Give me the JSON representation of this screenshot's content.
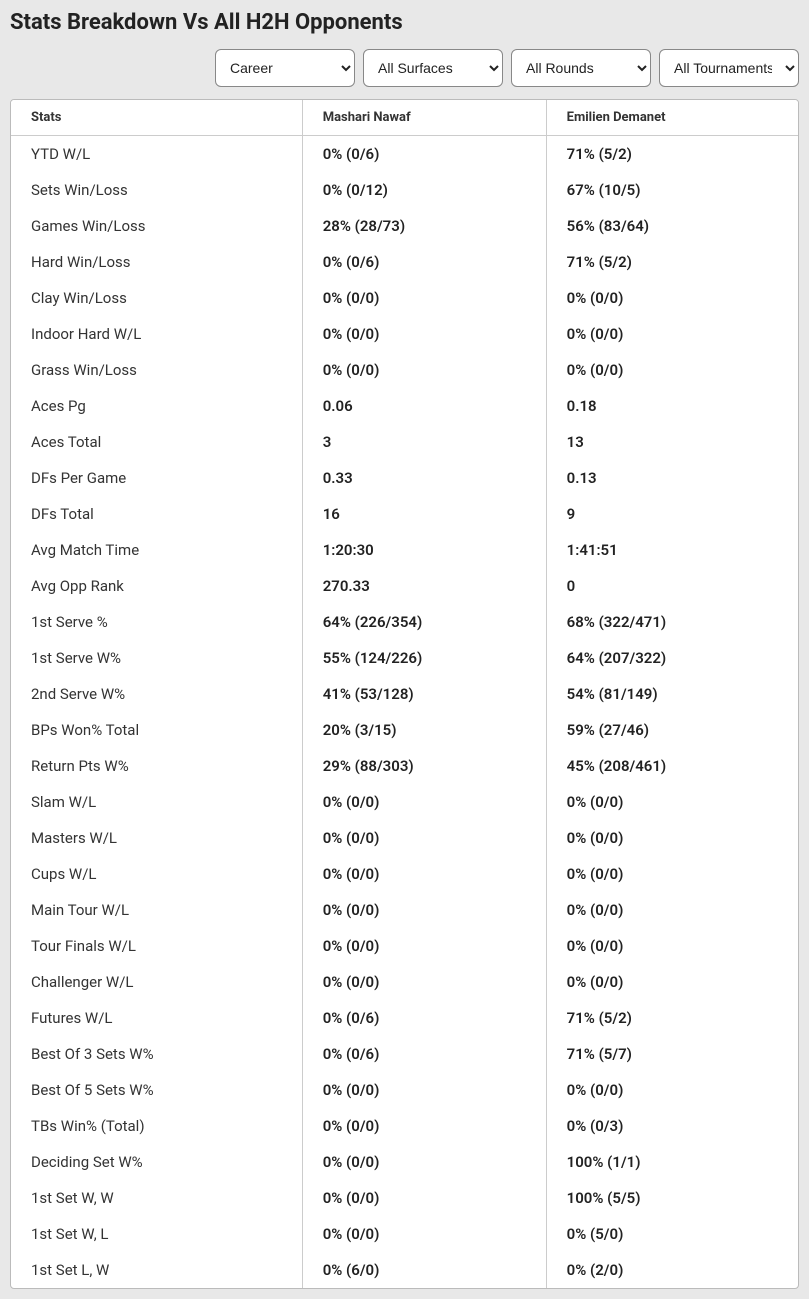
{
  "title": "Stats Breakdown Vs All H2H Opponents",
  "filters": {
    "career": "Career",
    "surfaces": "All Surfaces",
    "rounds": "All Rounds",
    "tournaments": "All Tournaments"
  },
  "table": {
    "headers": [
      "Stats",
      "Mashari Nawaf",
      "Emilien Demanet"
    ],
    "rows": [
      [
        "YTD W/L",
        "0% (0/6)",
        "71% (5/2)"
      ],
      [
        "Sets Win/Loss",
        "0% (0/12)",
        "67% (10/5)"
      ],
      [
        "Games Win/Loss",
        "28% (28/73)",
        "56% (83/64)"
      ],
      [
        "Hard Win/Loss",
        "0% (0/6)",
        "71% (5/2)"
      ],
      [
        "Clay Win/Loss",
        "0% (0/0)",
        "0% (0/0)"
      ],
      [
        "Indoor Hard W/L",
        "0% (0/0)",
        "0% (0/0)"
      ],
      [
        "Grass Win/Loss",
        "0% (0/0)",
        "0% (0/0)"
      ],
      [
        "Aces Pg",
        "0.06",
        "0.18"
      ],
      [
        "Aces Total",
        "3",
        "13"
      ],
      [
        "DFs Per Game",
        "0.33",
        "0.13"
      ],
      [
        "DFs Total",
        "16",
        "9"
      ],
      [
        "Avg Match Time",
        "1:20:30",
        "1:41:51"
      ],
      [
        "Avg Opp Rank",
        "270.33",
        "0"
      ],
      [
        "1st Serve %",
        "64% (226/354)",
        "68% (322/471)"
      ],
      [
        "1st Serve W%",
        "55% (124/226)",
        "64% (207/322)"
      ],
      [
        "2nd Serve W%",
        "41% (53/128)",
        "54% (81/149)"
      ],
      [
        "BPs Won% Total",
        "20% (3/15)",
        "59% (27/46)"
      ],
      [
        "Return Pts W%",
        "29% (88/303)",
        "45% (208/461)"
      ],
      [
        "Slam W/L",
        "0% (0/0)",
        "0% (0/0)"
      ],
      [
        "Masters W/L",
        "0% (0/0)",
        "0% (0/0)"
      ],
      [
        "Cups W/L",
        "0% (0/0)",
        "0% (0/0)"
      ],
      [
        "Main Tour W/L",
        "0% (0/0)",
        "0% (0/0)"
      ],
      [
        "Tour Finals W/L",
        "0% (0/0)",
        "0% (0/0)"
      ],
      [
        "Challenger W/L",
        "0% (0/0)",
        "0% (0/0)"
      ],
      [
        "Futures W/L",
        "0% (0/6)",
        "71% (5/2)"
      ],
      [
        "Best Of 3 Sets W%",
        "0% (0/6)",
        "71% (5/7)"
      ],
      [
        "Best Of 5 Sets W%",
        "0% (0/0)",
        "0% (0/0)"
      ],
      [
        "TBs Win% (Total)",
        "0% (0/0)",
        "0% (0/3)"
      ],
      [
        "Deciding Set W%",
        "0% (0/0)",
        "100% (1/1)"
      ],
      [
        "1st Set W, W",
        "0% (0/0)",
        "100% (5/5)"
      ],
      [
        "1st Set W, L",
        "0% (0/0)",
        "0% (5/0)"
      ],
      [
        "1st Set L, W",
        "0% (6/0)",
        "0% (2/0)"
      ]
    ]
  }
}
